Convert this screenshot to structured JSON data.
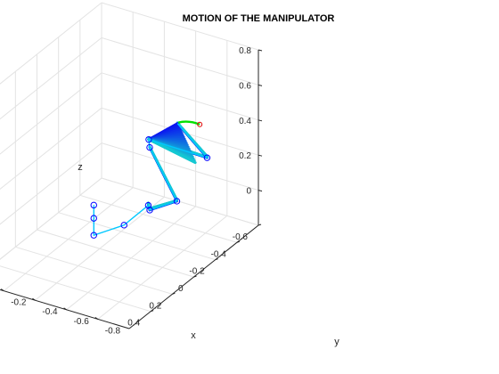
{
  "chart_data": {
    "type": "line",
    "plot_kind": "3d",
    "title": "MOTION OF THE MANIPULATOR",
    "xlabel": "x",
    "ylabel": "y",
    "zlabel": "z",
    "xlim": [
      -0.6,
      0.6
    ],
    "ylim": [
      -1.0,
      0.0
    ],
    "zlim": [
      -0.2,
      0.8
    ],
    "x_ticks": [
      "-0.6",
      "-0.4",
      "-0.2",
      "0",
      "0.2",
      "0.4"
    ],
    "y_ticks": [
      "-0.8",
      "-0.6",
      "-0.4",
      "-0.2",
      "0"
    ],
    "z_ticks": [
      "0",
      "0.2",
      "0.4",
      "0.6",
      "0.8"
    ],
    "grid": true,
    "colors": {
      "sweep_start": "#0a14f0",
      "sweep_end": "#14c8d2",
      "final_pose": "#00c8ff",
      "joint_markers": "#0000ff",
      "end_effector_trace": "#00e000",
      "end_marker": "#e00000"
    },
    "series": [
      {
        "name": "",
        "points": [
          [
            0.055,
            -0.4,
            0.075
          ],
          [
            0.055,
            -0.4,
            0.0
          ],
          [
            0.055,
            -0.4,
            -0.097
          ],
          [
            0.036,
            -0.58,
            0.0
          ],
          [
            0.015,
            -0.72,
            0.14
          ],
          [
            0.14,
            -0.815,
            0.2
          ],
          [
            0.07,
            -0.94,
            0.25
          ],
          [
            -0.1,
            -0.65,
            0.395
          ],
          [
            -0.135,
            -0.62,
            0.415
          ],
          [
            -0.24,
            -0.92,
            0.34
          ],
          [
            -0.38,
            -0.635,
            0.39
          ]
        ]
      }
    ]
  }
}
